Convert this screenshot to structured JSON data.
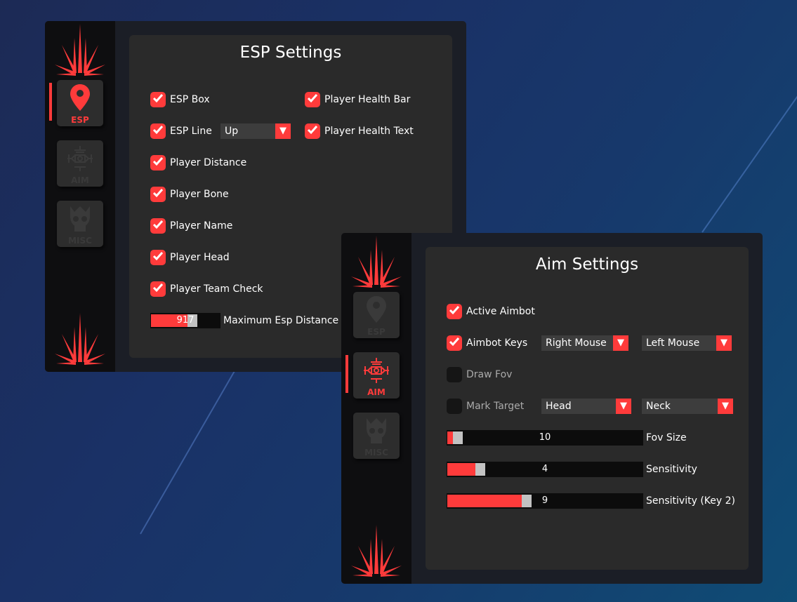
{
  "colors": {
    "accent": "#ff3b3b",
    "panel": "#2a2a2a",
    "sidebar": "#0e0e10"
  },
  "esp": {
    "title": "ESP Settings",
    "nav": [
      {
        "label": "ESP",
        "icon": "map-pin-icon",
        "active": true
      },
      {
        "label": "AIM",
        "icon": "crosshair-icon",
        "active": false
      },
      {
        "label": "MISC",
        "icon": "skull-icon",
        "active": false
      }
    ],
    "left_checks": [
      {
        "label": "ESP Box",
        "checked": true
      },
      {
        "label": "ESP Line",
        "checked": true
      },
      {
        "label": "Player Distance",
        "checked": true
      },
      {
        "label": "Player Bone",
        "checked": true
      },
      {
        "label": "Player Name",
        "checked": true
      },
      {
        "label": "Player Head",
        "checked": true
      },
      {
        "label": "Player Team Check",
        "checked": true
      }
    ],
    "right_checks": [
      {
        "label": "Player Health Bar",
        "checked": true
      },
      {
        "label": "Player Health Text",
        "checked": true
      }
    ],
    "line_dropdown": "Up",
    "distance_slider": {
      "value": "917",
      "fraction": 0.62,
      "label": "Maximum Esp Distance"
    }
  },
  "aim": {
    "title": "Aim Settings",
    "nav": [
      {
        "label": "ESP",
        "icon": "map-pin-icon",
        "active": false
      },
      {
        "label": "AIM",
        "icon": "crosshair-icon",
        "active": true
      },
      {
        "label": "MISC",
        "icon": "skull-icon",
        "active": false
      }
    ],
    "checks": [
      {
        "label": "Active Aimbot",
        "checked": true
      },
      {
        "label": "Aimbot Keys",
        "checked": true
      },
      {
        "label": "Draw Fov",
        "checked": false
      },
      {
        "label": "Mark Target",
        "checked": false
      }
    ],
    "key_dropdowns": [
      "Right Mouse",
      "Left Mouse"
    ],
    "target_dropdowns": [
      "Head",
      "Neck"
    ],
    "sliders": [
      {
        "value": "10",
        "fraction": 0.03,
        "label": "Fov Size"
      },
      {
        "value": "4",
        "fraction": 0.15,
        "label": "Sensitivity"
      },
      {
        "value": "9",
        "fraction": 0.4,
        "label": "Sensitivity (Key 2)"
      }
    ]
  }
}
